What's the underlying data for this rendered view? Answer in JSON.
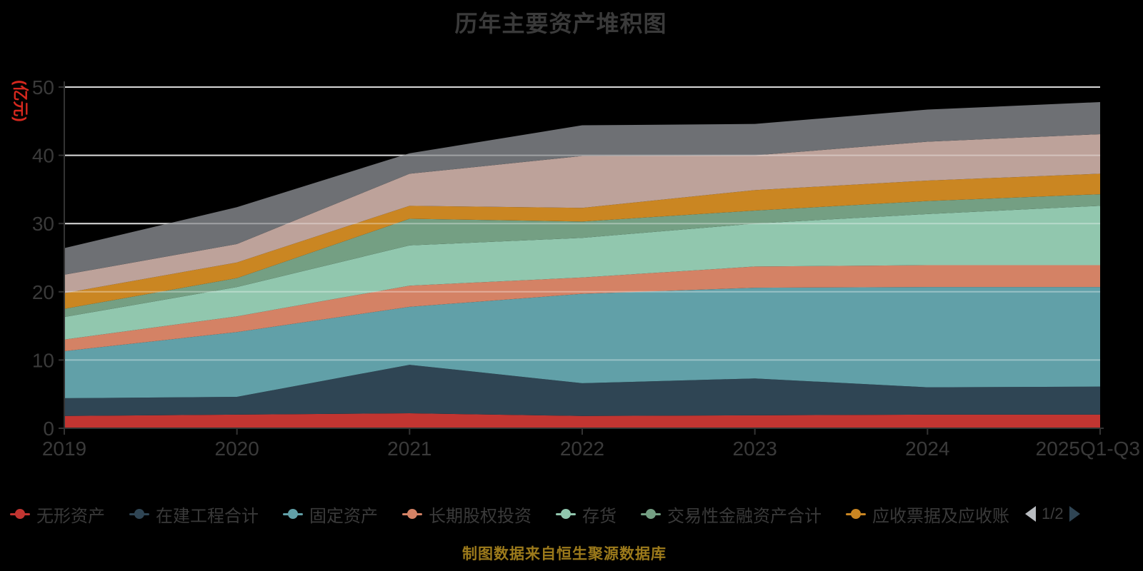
{
  "title": "历年主要资产堆积图",
  "y_axis_unit": "(亿元)",
  "footer": "制图数据来自恒生聚源数据库",
  "legend": {
    "page_indicator": "1/2"
  },
  "colors": {
    "background": "#000000",
    "text": "#3a3a3a",
    "axis": "#333333",
    "gridline_base": "#c4c4c4",
    "gridline_overlay": "rgba(255,255,255,0.35)",
    "unit_label": "#d6281e",
    "footer_text": "#9c7a1b",
    "pager_prev": "#b9bcc0",
    "pager_next": "#2f4554",
    "pager_text": "#3e3e3e"
  },
  "chart_data": {
    "type": "area",
    "stacked": true,
    "title": "历年主要资产堆积图",
    "ylabel": "(亿元)",
    "xlabel": "",
    "grid": true,
    "legend_position": "bottom",
    "ylim": [
      0,
      50
    ],
    "y_ticks": [
      0,
      10,
      20,
      30,
      40,
      50
    ],
    "categories": [
      "2019",
      "2020",
      "2021",
      "2022",
      "2023",
      "2024",
      "2025Q1-Q3"
    ],
    "series": [
      {
        "name": "无形资产",
        "color": "#c23531",
        "in_legend": true,
        "values": [
          1.8,
          2.0,
          2.2,
          1.8,
          1.9,
          2.0,
          2.0
        ]
      },
      {
        "name": "在建工程合计",
        "color": "#2f4554",
        "in_legend": true,
        "values": [
          2.6,
          2.6,
          7.1,
          4.8,
          5.4,
          4.0,
          4.1
        ]
      },
      {
        "name": "固定资产",
        "color": "#61a0a8",
        "in_legend": true,
        "values": [
          6.9,
          9.5,
          8.5,
          13.1,
          13.3,
          14.7,
          14.6
        ]
      },
      {
        "name": "长期股权投资",
        "color": "#d48265",
        "in_legend": true,
        "values": [
          1.7,
          2.3,
          3.1,
          2.4,
          3.1,
          3.2,
          3.2
        ]
      },
      {
        "name": "存货",
        "color": "#91c7ae",
        "in_legend": true,
        "values": [
          3.3,
          4.3,
          5.9,
          5.8,
          6.3,
          7.5,
          8.7
        ]
      },
      {
        "name": "交易性金融资产合计",
        "color": "#749f83",
        "in_legend": true,
        "values": [
          1.2,
          1.3,
          3.9,
          2.4,
          1.9,
          1.9,
          1.7
        ]
      },
      {
        "name": "应收票据及应收账",
        "color": "#ca8622",
        "in_legend": true,
        "values": [
          2.3,
          2.3,
          1.9,
          2.0,
          3.0,
          3.0,
          3.0
        ]
      },
      {
        "name": "",
        "color": "#bda29a",
        "in_legend": false,
        "values": [
          2.7,
          2.7,
          4.7,
          7.6,
          5.1,
          5.7,
          5.8
        ]
      },
      {
        "name": "",
        "color": "#6e7074",
        "in_legend": false,
        "values": [
          3.9,
          5.4,
          3.0,
          4.5,
          4.6,
          4.7,
          4.7
        ]
      }
    ]
  }
}
